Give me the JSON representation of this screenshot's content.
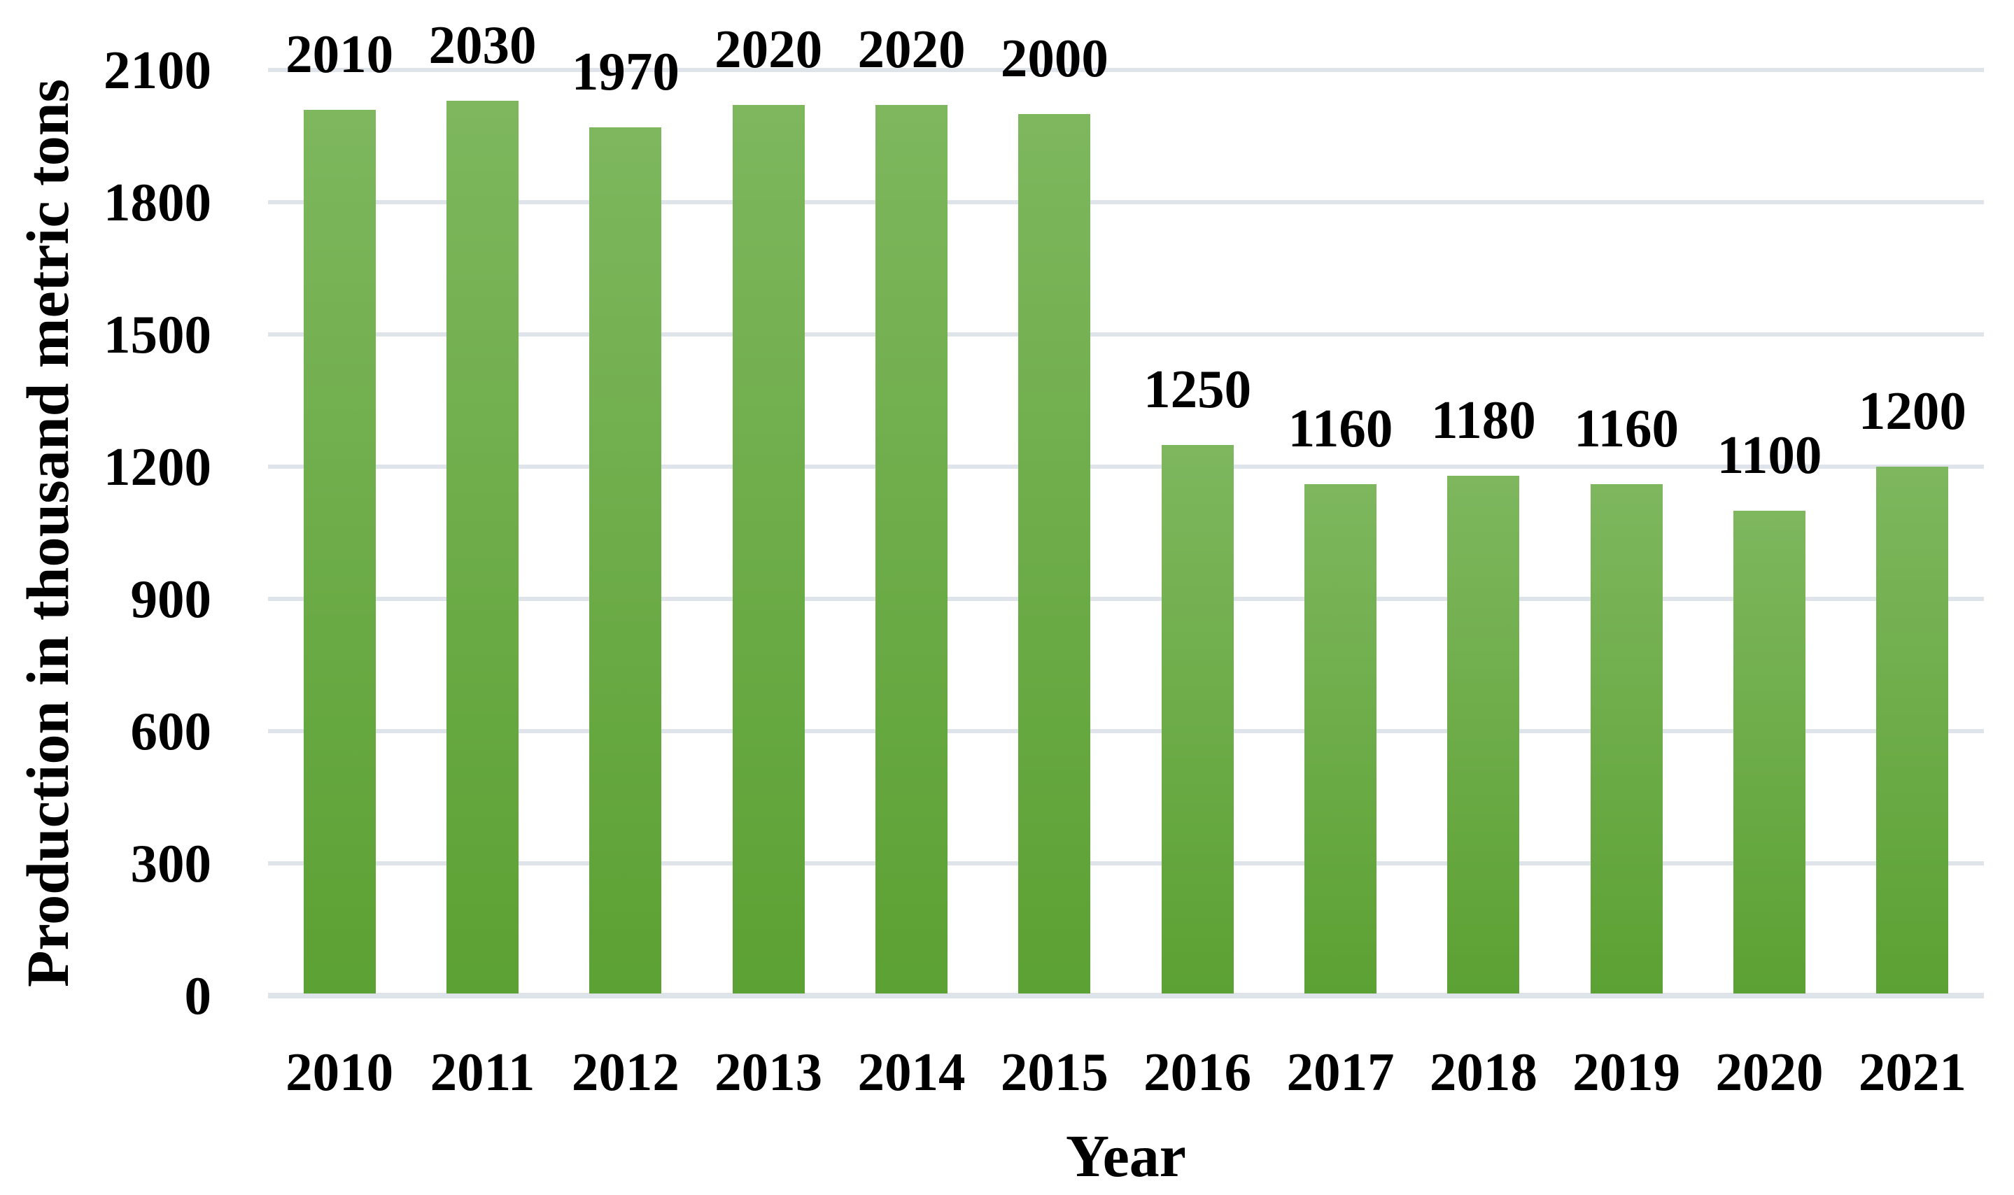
{
  "chart_data": {
    "type": "bar",
    "title": "",
    "xlabel": "Year",
    "ylabel": "Production in thousand metric tons",
    "categories": [
      "2010",
      "2011",
      "2012",
      "2013",
      "2014",
      "2015",
      "2016",
      "2017",
      "2018",
      "2019",
      "2020",
      "2021"
    ],
    "values": [
      2010,
      2030,
      1970,
      2020,
      2020,
      2000,
      1250,
      1160,
      1180,
      1160,
      1100,
      1200
    ],
    "data_labels": [
      "2010",
      "2030",
      "1970",
      "2020",
      "2020",
      "2000",
      "1250",
      "1160",
      "1180",
      "1160",
      "1100",
      "1200"
    ],
    "ylim": [
      0,
      2100
    ],
    "yticks": [
      0,
      300,
      600,
      900,
      1200,
      1500,
      1800,
      2100
    ],
    "grid": "horizontal",
    "legend": "none",
    "colors": {
      "bar_gradient_top": "#7eb75e",
      "bar_gradient_bottom": "#5ca133",
      "gridline": "#dfe3ea",
      "axis_line": "#dfe3ea",
      "text": "#000000",
      "background": "#ffffff"
    }
  }
}
